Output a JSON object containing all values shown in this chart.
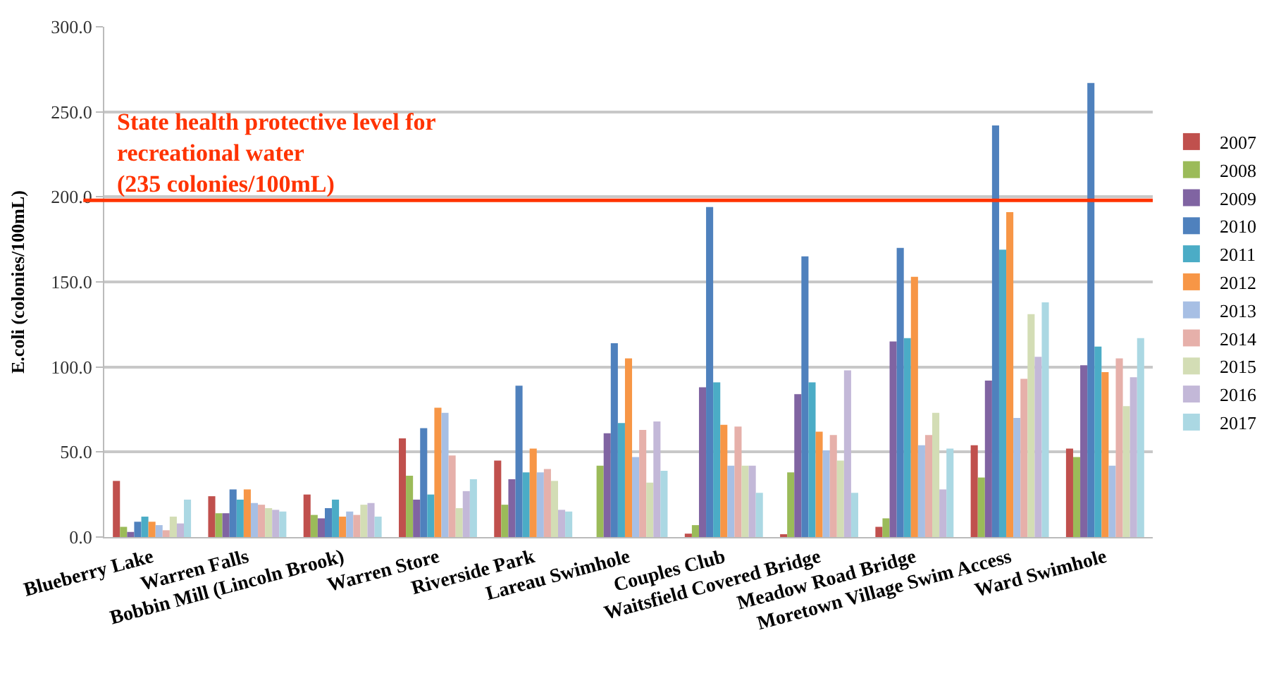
{
  "chart_data": {
    "type": "bar",
    "ylabel": "E.coli (colonies/100mL)",
    "categories": [
      "Blueberry Lake",
      "Warren Falls",
      "Bobbin Mill (Lincoln Brook)",
      "Warren Store",
      "Riverside Park",
      "Lareau Swimhole",
      "Couples Club",
      "Waitsfield Covered Bridge",
      "Meadow Road Bridge",
      "Moretown Village Swim Access",
      "Ward Swimhole"
    ],
    "series": [
      {
        "name": "2007",
        "color": "#c0504d",
        "values": [
          33,
          24,
          25,
          58,
          45,
          null,
          2,
          1,
          6,
          54,
          52
        ]
      },
      {
        "name": "2008",
        "color": "#9bbb59",
        "values": [
          6,
          14,
          13,
          36,
          19,
          42,
          7,
          38,
          11,
          35,
          47
        ]
      },
      {
        "name": "2009",
        "color": "#8064a2",
        "values": [
          3,
          14,
          11,
          22,
          34,
          61,
          88,
          84,
          115,
          92,
          101
        ]
      },
      {
        "name": "2010",
        "color": "#4f81bd",
        "values": [
          9,
          28,
          17,
          64,
          89,
          114,
          194,
          165,
          170,
          242,
          267
        ]
      },
      {
        "name": "2011",
        "color": "#4bacc6",
        "values": [
          12,
          22,
          22,
          25,
          38,
          67,
          91,
          91,
          117,
          169,
          112
        ]
      },
      {
        "name": "2012",
        "color": "#f79646",
        "values": [
          9,
          28,
          12,
          76,
          52,
          105,
          66,
          62,
          153,
          191,
          97
        ]
      },
      {
        "name": "2013",
        "color": "#a7bfe4",
        "values": [
          7,
          20,
          15,
          73,
          38,
          47,
          42,
          51,
          54,
          70,
          42
        ]
      },
      {
        "name": "2014",
        "color": "#e6b0aa",
        "values": [
          4,
          19,
          13,
          48,
          40,
          63,
          65,
          60,
          60,
          93,
          105
        ]
      },
      {
        "name": "2015",
        "color": "#d3ddb5",
        "values": [
          12,
          17,
          19,
          17,
          33,
          32,
          42,
          45,
          73,
          131,
          77
        ]
      },
      {
        "name": "2016",
        "color": "#c3b8d8",
        "values": [
          8,
          16,
          20,
          27,
          16,
          68,
          42,
          98,
          28,
          106,
          94
        ]
      },
      {
        "name": "2017",
        "color": "#abd8e3",
        "values": [
          22,
          15,
          12,
          34,
          15,
          39,
          26,
          26,
          52,
          138,
          117
        ]
      }
    ],
    "ylim": [
      0,
      300
    ],
    "yticks": [
      {
        "value": 0,
        "label": "0.0"
      },
      {
        "value": 50,
        "label": "50.0"
      },
      {
        "value": 100,
        "label": "100.0"
      },
      {
        "value": 150,
        "label": "150.0"
      },
      {
        "value": 200,
        "label": "200.0"
      },
      {
        "value": 250,
        "label": "250.0"
      },
      {
        "value": 300,
        "label": "300.0"
      }
    ],
    "grid": "y",
    "legend": "right",
    "ref_lines": [
      {
        "axis": "y",
        "value": 198,
        "label": "State health protective level for\nrecreational water\n(235 colonies/100mL)",
        "color": "#ff3300"
      }
    ]
  }
}
